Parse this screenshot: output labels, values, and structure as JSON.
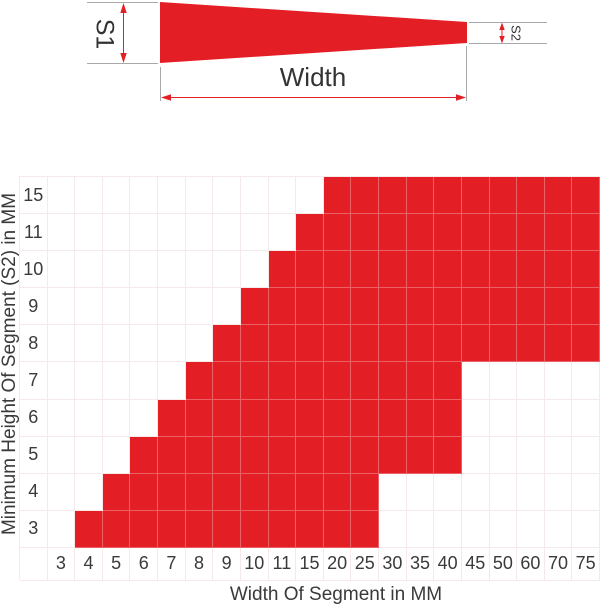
{
  "diagram": {
    "s1_label": "S1",
    "s2_label": "S2",
    "width_label": "Width"
  },
  "chart_data": {
    "type": "heatmap",
    "title": "",
    "xlabel": "Width Of Segment in MM",
    "ylabel": "Minimum Height Of Segment (S2) in MM",
    "legend": "none",
    "grid": true,
    "columns": [
      "3",
      "4",
      "5",
      "6",
      "7",
      "8",
      "9",
      "10",
      "11",
      "15",
      "20",
      "25",
      "30",
      "35",
      "40",
      "45",
      "50",
      "60",
      "70",
      "75"
    ],
    "rows_top_to_bottom": [
      "15",
      "11",
      "10",
      "9",
      "8",
      "7",
      "6",
      "5",
      "4",
      "3"
    ],
    "filled_ranges": [
      {
        "row": "15",
        "from": "20",
        "to": "75"
      },
      {
        "row": "11",
        "from": "15",
        "to": "75"
      },
      {
        "row": "10",
        "from": "11",
        "to": "75"
      },
      {
        "row": "9",
        "from": "10",
        "to": "75"
      },
      {
        "row": "8",
        "from": "9",
        "to": "75"
      },
      {
        "row": "7",
        "from": "8",
        "to": "40"
      },
      {
        "row": "6",
        "from": "7",
        "to": "40"
      },
      {
        "row": "5",
        "from": "6",
        "to": "40"
      },
      {
        "row": "4",
        "from": "5",
        "to": "25"
      },
      {
        "row": "3",
        "from": "4",
        "to": "25"
      }
    ],
    "colors": {
      "filled": "#e31e24",
      "grid_line_empty": "#f6e9e9",
      "grid_line_filled": "rgba(255,255,255,0.30)",
      "extension_line": "#a9a9a9",
      "text": "#3a3a3a"
    }
  }
}
